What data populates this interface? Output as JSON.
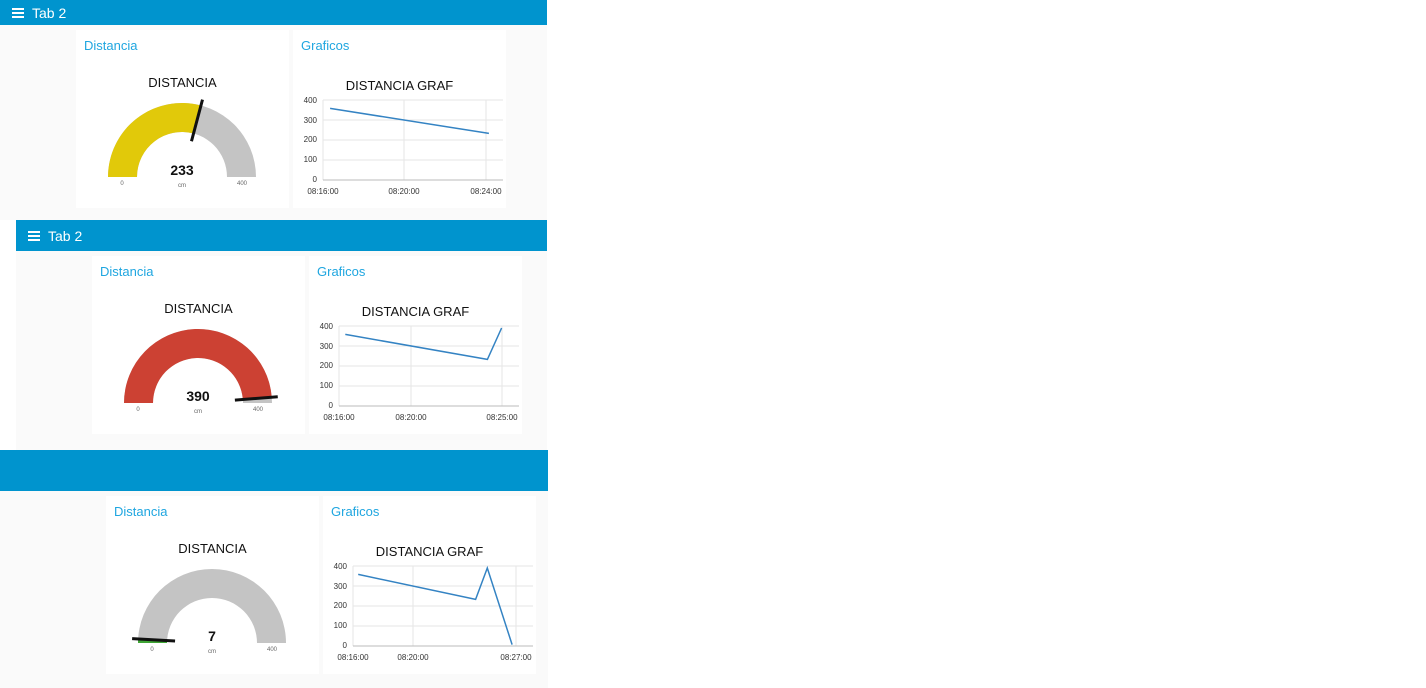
{
  "colors": {
    "toolbar": "#0094ce",
    "link": "#1fa6e0",
    "gauge_track": "#c4c4c4",
    "gauge_yellow": "#e1c90a",
    "gauge_red": "#cc4133",
    "gauge_green": "#3fa535",
    "line": "#3483c3"
  },
  "dashboards": [
    {
      "toolbar_title": "Tab 2",
      "gauge_card": {
        "group": "Distancia",
        "title": "DISTANCIA",
        "value": 233,
        "units": "cm",
        "min": 0,
        "max": 400,
        "min_label": "0",
        "max_label": "400",
        "color": "#e1c90a"
      },
      "chart_card": {
        "group": "Graficos",
        "title": "DISTANCIA GRAF",
        "x_labels": [
          "08:16:00",
          "08:20:00",
          "08:24:00"
        ],
        "y_labels": [
          "0",
          "100",
          "200",
          "300",
          "400"
        ]
      }
    },
    {
      "toolbar_title": "Tab 2",
      "gauge_card": {
        "group": "Distancia",
        "title": "DISTANCIA",
        "value": 390,
        "units": "cm",
        "min": 0,
        "max": 400,
        "min_label": "0",
        "max_label": "400",
        "color": "#cc4133"
      },
      "chart_card": {
        "group": "Graficos",
        "title": "DISTANCIA GRAF",
        "x_labels": [
          "08:16:00",
          "08:20:00",
          "08:25:00"
        ],
        "y_labels": [
          "0",
          "100",
          "200",
          "300",
          "400"
        ]
      }
    },
    {
      "toolbar_title": "",
      "gauge_card": {
        "group": "Distancia",
        "title": "DISTANCIA",
        "value": 7,
        "units": "cm",
        "min": 0,
        "max": 400,
        "min_label": "0",
        "max_label": "400",
        "color": "#3fa535"
      },
      "chart_card": {
        "group": "Graficos",
        "title": "DISTANCIA GRAF",
        "x_labels": [
          "08:16:00",
          "08:20:00",
          "08:27:00"
        ],
        "y_labels": [
          "0",
          "100",
          "200",
          "300",
          "400"
        ]
      }
    }
  ],
  "chart_data": [
    {
      "type": "line",
      "title": "DISTANCIA GRAF",
      "xlabel": "",
      "ylabel": "",
      "ylim": [
        0,
        400
      ],
      "xlim": [
        "08:16:00",
        "08:24:30"
      ],
      "series": [
        {
          "x": [
            "08:16:20",
            "08:23:50"
          ],
          "y": [
            358,
            233
          ]
        }
      ]
    },
    {
      "type": "line",
      "title": "DISTANCIA GRAF",
      "xlabel": "",
      "ylabel": "",
      "ylim": [
        0,
        400
      ],
      "xlim": [
        "08:16:00",
        "08:25:30"
      ],
      "series": [
        {
          "x": [
            "08:16:20",
            "08:23:50",
            "08:24:35"
          ],
          "y": [
            358,
            233,
            390
          ]
        }
      ]
    },
    {
      "type": "line",
      "title": "DISTANCIA GRAF",
      "xlabel": "",
      "ylabel": "",
      "ylim": [
        0,
        400
      ],
      "xlim": [
        "08:16:00",
        "08:27:30"
      ],
      "series": [
        {
          "x": [
            "08:16:20",
            "08:23:50",
            "08:24:35",
            "08:26:10"
          ],
          "y": [
            358,
            233,
            390,
            7
          ]
        }
      ]
    }
  ]
}
